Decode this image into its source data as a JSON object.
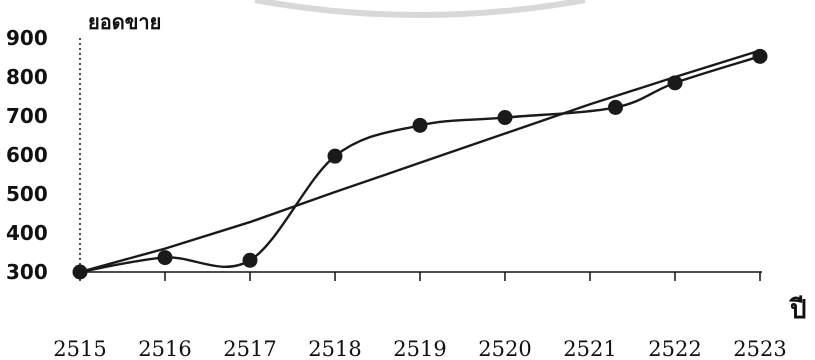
{
  "chart_data": {
    "type": "line",
    "title": "",
    "ylabel": "ยอดขาย",
    "xlabel": "ปี",
    "x": [
      "2515",
      "2516",
      "2517",
      "2518",
      "2519",
      "2520",
      "2521",
      "2522",
      "2523"
    ],
    "ylim": [
      300,
      900
    ],
    "yticks": [
      "900",
      "800",
      "700",
      "600",
      "500",
      "400",
      "300"
    ],
    "series": [
      {
        "values": [
          300,
          337,
          330,
          597,
          676,
          696,
          722,
          785,
          853
        ],
        "marker_x": [
          2515,
          2516,
          2517,
          2518,
          2519,
          2520,
          2521.3,
          2522,
          2523
        ],
        "markers": true
      },
      {
        "values": [
          300,
          360,
          428,
          505,
          580,
          655,
          730,
          800,
          868
        ],
        "markers": false
      }
    ],
    "grid": false,
    "legend": "none",
    "line_color": "#1a1a1a",
    "marker_color": "#1a1a1a"
  }
}
